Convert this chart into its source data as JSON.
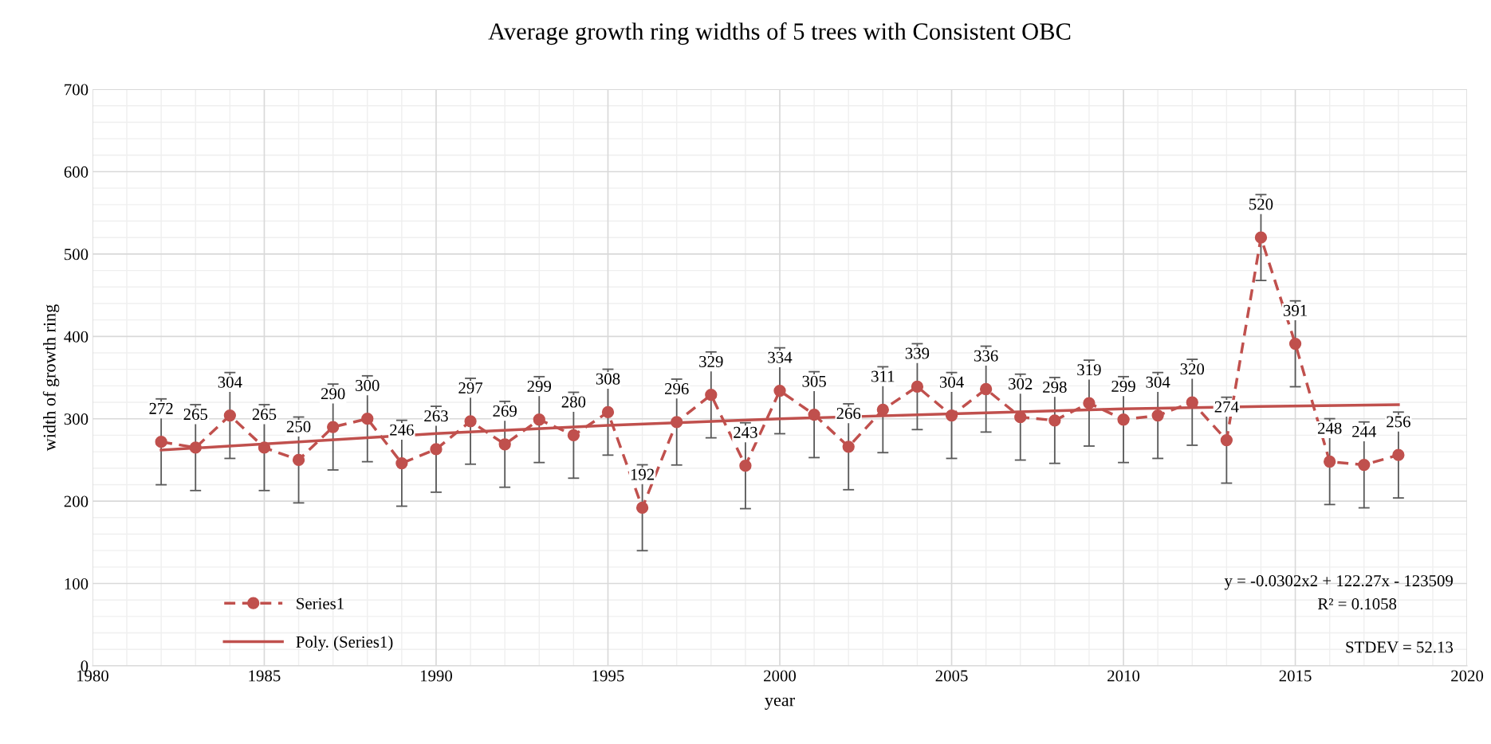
{
  "chart_data": {
    "type": "line",
    "title": "Average growth ring widths of 5 trees with Consistent OBC",
    "xlabel": "year",
    "ylabel": "width of growth ring",
    "xlim": [
      1980,
      2020
    ],
    "xticks": [
      1980,
      1985,
      1990,
      1995,
      2000,
      2005,
      2010,
      2015,
      2020
    ],
    "ylim": [
      0,
      700
    ],
    "yticks": [
      0,
      100,
      200,
      300,
      400,
      500,
      600,
      700
    ],
    "grid": true,
    "legend": "bottom left",
    "series": [
      {
        "name": "Series1",
        "color": "#c0504d",
        "marker": "circle",
        "line_style": "dashed",
        "x": [
          1982,
          1983,
          1984,
          1985,
          1986,
          1987,
          1988,
          1989,
          1990,
          1991,
          1992,
          1993,
          1994,
          1995,
          1996,
          1997,
          1998,
          1999,
          2000,
          2001,
          2002,
          2003,
          2004,
          2005,
          2006,
          2007,
          2008,
          2009,
          2010,
          2011,
          2012,
          2013,
          2014,
          2015,
          2016,
          2017,
          2018
        ],
        "values": [
          272,
          265,
          304,
          265,
          250,
          290,
          300,
          246,
          263,
          297,
          269,
          299,
          280,
          308,
          192,
          296,
          329,
          243,
          334,
          305,
          266,
          311,
          339,
          304,
          336,
          302,
          298,
          319,
          299,
          304,
          320,
          274,
          520,
          391,
          248,
          244,
          256
        ],
        "errors": [
          52.13,
          52.13,
          52.13,
          52.13,
          52.13,
          52.13,
          52.13,
          52.13,
          52.13,
          52.13,
          52.13,
          52.13,
          52.13,
          52.13,
          52.13,
          52.13,
          52.13,
          52.13,
          52.13,
          52.13,
          52.13,
          52.13,
          52.13,
          52.13,
          52.13,
          52.13,
          52.13,
          52.13,
          52.13,
          52.13,
          52.13,
          52.13,
          52.13,
          52.13,
          52.13,
          52.13,
          52.13
        ],
        "data_labels": true
      },
      {
        "name": "Poly. (Series1)",
        "color": "#c0504d",
        "marker": "none",
        "line_style": "solid",
        "x": [
          1982,
          1986,
          1990,
          1995,
          2000,
          2005,
          2010,
          2014,
          2018
        ],
        "values": [
          262,
          272,
          282,
          292,
          300,
          306,
          312,
          315,
          317
        ]
      }
    ],
    "annotations": [
      "y = -0.0302x2 + 122.27x - 123509",
      "R² = 0.1058",
      "STDEV = 52.13"
    ]
  }
}
